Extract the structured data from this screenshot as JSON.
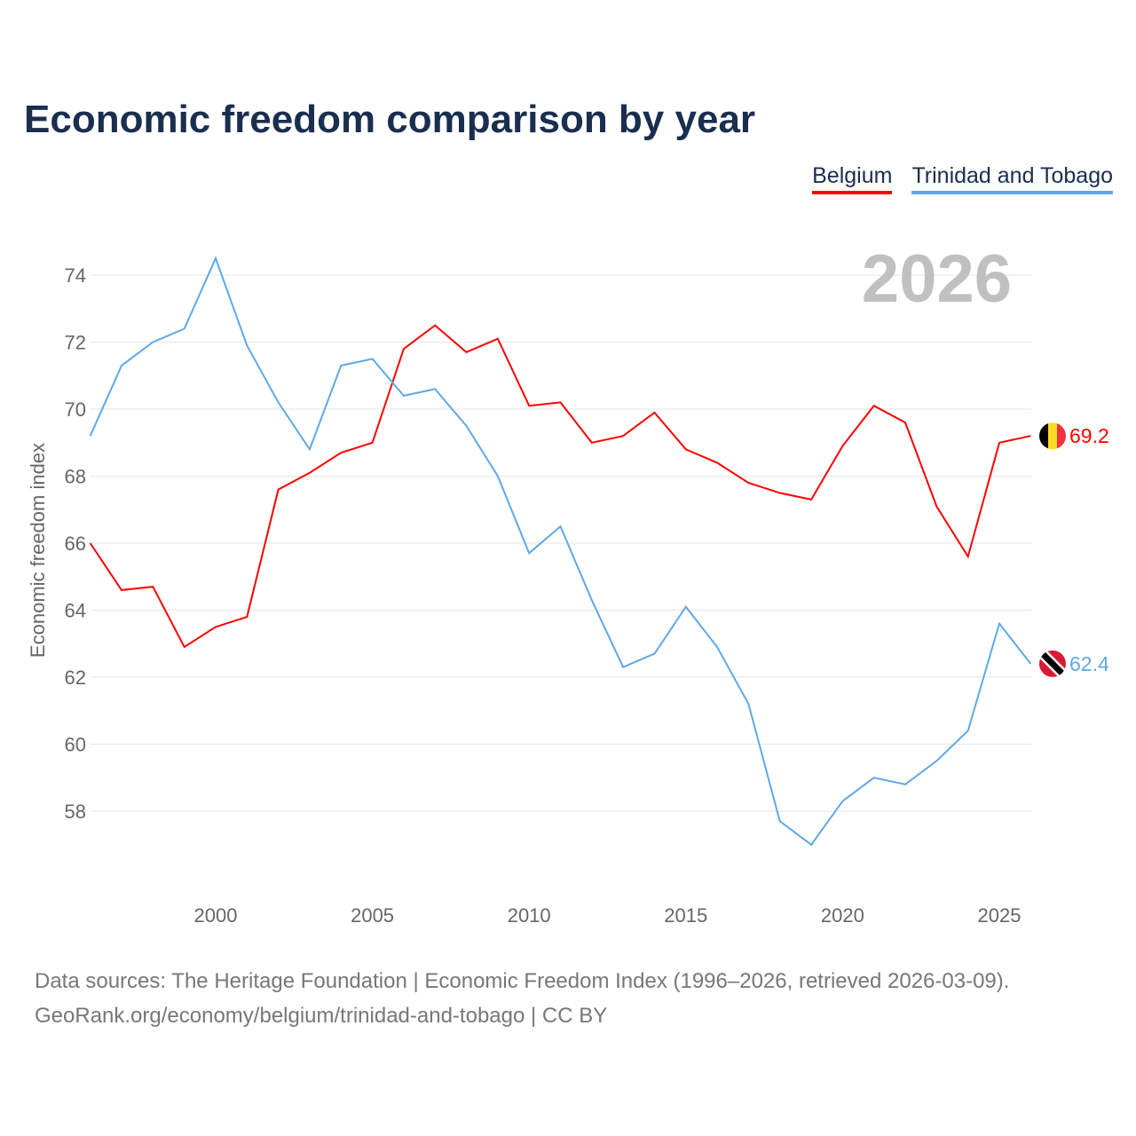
{
  "chart_data": {
    "type": "line",
    "title": "Economic freedom comparison by year",
    "ylabel": "Economic freedom index",
    "xlabel": "",
    "year_watermark": "2026",
    "ylim": [
      56,
      75
    ],
    "xlim": [
      1996,
      2026
    ],
    "yticks": [
      58,
      60,
      62,
      64,
      66,
      68,
      70,
      72,
      74
    ],
    "xticks": [
      2000,
      2005,
      2010,
      2015,
      2020,
      2025
    ],
    "grid": true,
    "legend_position": "top-right",
    "x": [
      1996,
      1997,
      1998,
      1999,
      2000,
      2001,
      2002,
      2003,
      2004,
      2005,
      2006,
      2007,
      2008,
      2009,
      2010,
      2011,
      2012,
      2013,
      2014,
      2015,
      2016,
      2017,
      2018,
      2019,
      2020,
      2021,
      2022,
      2023,
      2024,
      2025,
      2026
    ],
    "series": [
      {
        "name": "Belgium",
        "color": "#ff0000",
        "end_label": "69.2",
        "values": [
          66.0,
          64.6,
          64.7,
          62.9,
          63.5,
          63.8,
          67.6,
          68.1,
          68.7,
          69.0,
          71.8,
          72.5,
          71.7,
          72.1,
          70.1,
          70.2,
          69.0,
          69.2,
          69.9,
          68.8,
          68.4,
          67.8,
          67.5,
          67.3,
          68.9,
          70.1,
          69.6,
          67.1,
          65.6,
          69.0,
          69.2
        ]
      },
      {
        "name": "Trinidad and Tobago",
        "color": "#5fa8e8",
        "end_label": "62.4",
        "values": [
          69.2,
          71.3,
          72.0,
          72.4,
          74.5,
          71.9,
          70.2,
          68.8,
          71.3,
          71.5,
          70.4,
          70.6,
          69.5,
          68.0,
          65.7,
          66.5,
          64.3,
          62.3,
          62.7,
          64.1,
          62.9,
          61.2,
          57.7,
          57.0,
          58.3,
          59.0,
          58.8,
          59.5,
          60.4,
          63.6,
          62.4
        ]
      }
    ]
  },
  "footer": {
    "line1": "Data sources: The Heritage Foundation | Economic Freedom Index (1996–2026, retrieved 2026-03-09).",
    "line2": "GeoRank.org/economy/belgium/trinidad-and-tobago | CC BY"
  }
}
